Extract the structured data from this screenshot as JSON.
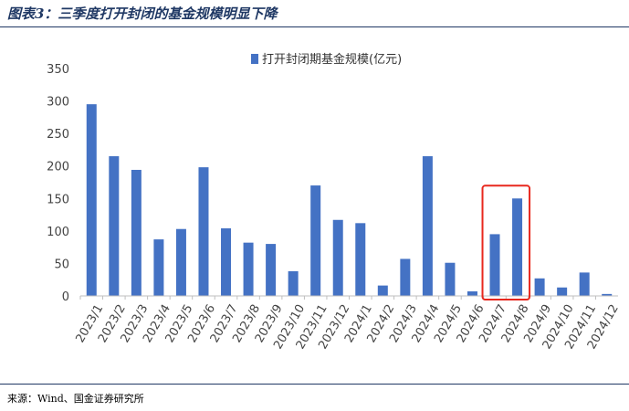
{
  "figure": {
    "title": "图表3：三季度打开封闭的基金规模明显下降",
    "source": "来源：Wind、国金证券研究所"
  },
  "colors": {
    "bar": "#4472c4",
    "highlight_box": "#e8281e",
    "rule": "#1f3864"
  },
  "chart_data": {
    "type": "bar",
    "categories": [
      "2023/1",
      "2023/2",
      "2023/3",
      "2023/4",
      "2023/5",
      "2023/6",
      "2023/7",
      "2023/8",
      "2023/9",
      "2023/10",
      "2023/11",
      "2023/12",
      "2024/1",
      "2024/2",
      "2024/3",
      "2024/4",
      "2024/5",
      "2024/6",
      "2024/7",
      "2024/8",
      "2024/9",
      "2024/10",
      "2024/11",
      "2024/12"
    ],
    "series": [
      {
        "name": "打开封闭期基金规模(亿元)",
        "values": [
          295,
          215,
          194,
          87,
          103,
          198,
          104,
          82,
          80,
          38,
          170,
          117,
          112,
          16,
          57,
          215,
          51,
          7,
          95,
          150,
          27,
          13,
          36,
          3
        ]
      }
    ],
    "ylim": [
      0,
      350
    ],
    "yticks": [
      0,
      50,
      100,
      150,
      200,
      250,
      300,
      350
    ],
    "grid": false,
    "legend_position": "top-center",
    "highlight_categories": [
      "2024/7",
      "2024/8"
    ]
  }
}
